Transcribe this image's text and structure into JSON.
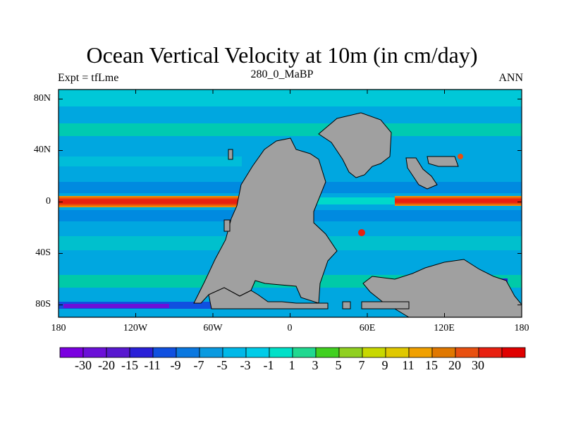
{
  "title": "Ocean Vertical Velocity at 10m (in cm/day)",
  "subtitle_left": "Expt = tfLme",
  "subtitle_center": "280_0_MaBP",
  "subtitle_right": "ANN",
  "land_color": "#a0a0a0",
  "background_color": "#00a7e0",
  "y_axis": {
    "ticks": [
      {
        "value": 80,
        "label": "80N"
      },
      {
        "value": 40,
        "label": "40N"
      },
      {
        "value": 0,
        "label": "0"
      },
      {
        "value": -40,
        "label": "40S"
      },
      {
        "value": -80,
        "label": "80S"
      }
    ]
  },
  "x_axis": {
    "ticks": [
      {
        "value": -180,
        "label": "180"
      },
      {
        "value": -120,
        "label": "120W"
      },
      {
        "value": -60,
        "label": "60W"
      },
      {
        "value": 0,
        "label": "0"
      },
      {
        "value": 60,
        "label": "60E"
      },
      {
        "value": 120,
        "label": "120E"
      },
      {
        "value": 180,
        "label": "180"
      }
    ]
  },
  "colorbar": {
    "colors": [
      "#7a00e0",
      "#6b10d8",
      "#5818d0",
      "#2a20d8",
      "#1050e0",
      "#0a78e0",
      "#0a9ae0",
      "#00b8e8",
      "#00cce8",
      "#00e0c8",
      "#20d890",
      "#40d020",
      "#90d020",
      "#c8d800",
      "#e0c800",
      "#f0a000",
      "#e07800",
      "#e85010",
      "#e82010",
      "#e00000"
    ],
    "labels": [
      "-30",
      "-20",
      "-15",
      "-11",
      "-9",
      "-7",
      "-5",
      "-3",
      "-1",
      "1",
      "3",
      "5",
      "7",
      "9",
      "11",
      "15",
      "20",
      "30"
    ]
  }
}
